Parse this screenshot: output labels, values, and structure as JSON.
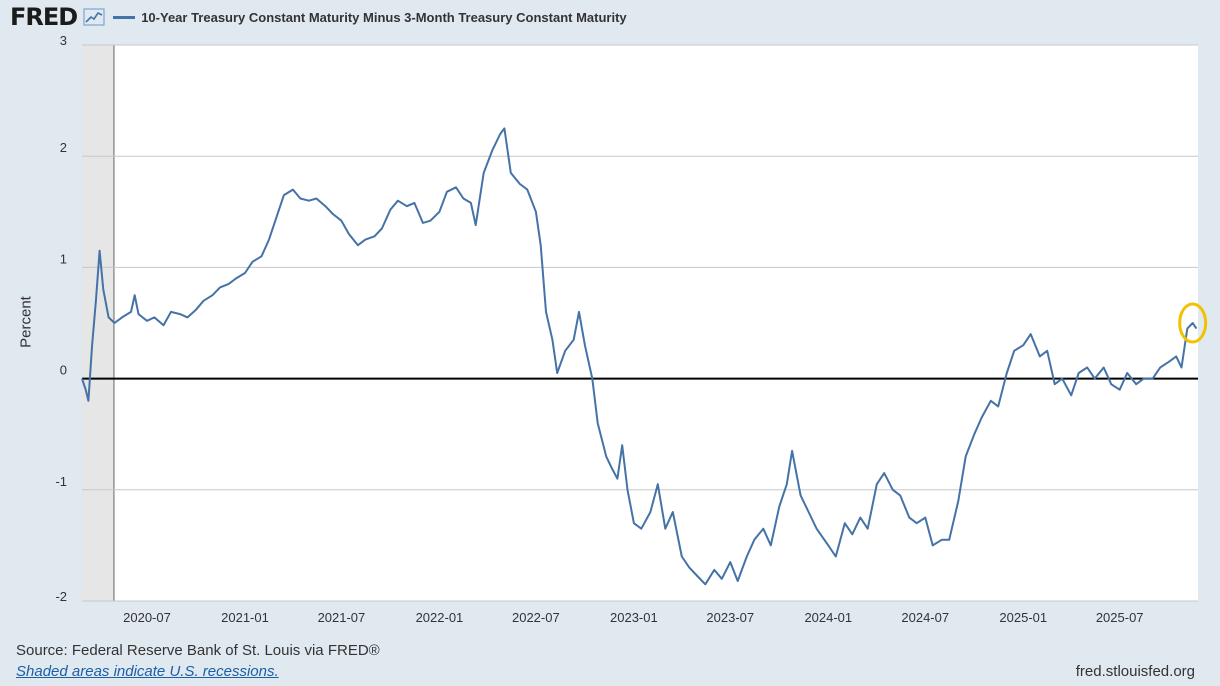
{
  "header": {
    "logo": "FRED",
    "logo_icon": "trend-line-icon"
  },
  "chart_data": {
    "type": "line",
    "series": [
      {
        "name": "10-Year Treasury Constant Maturity Minus 3-Month Treasury Constant Maturity",
        "color": "#4572a7",
        "points": [
          [
            "2020-03-01",
            0.0
          ],
          [
            "2020-03-08",
            -0.1
          ],
          [
            "2020-03-13",
            -0.2
          ],
          [
            "2020-03-20",
            0.3
          ],
          [
            "2020-03-27",
            0.7
          ],
          [
            "2020-04-03",
            1.15
          ],
          [
            "2020-04-10",
            0.8
          ],
          [
            "2020-04-20",
            0.55
          ],
          [
            "2020-05-01",
            0.5
          ],
          [
            "2020-05-15",
            0.55
          ],
          [
            "2020-06-01",
            0.6
          ],
          [
            "2020-06-08",
            0.75
          ],
          [
            "2020-06-15",
            0.58
          ],
          [
            "2020-07-01",
            0.52
          ],
          [
            "2020-07-15",
            0.55
          ],
          [
            "2020-08-01",
            0.48
          ],
          [
            "2020-08-15",
            0.6
          ],
          [
            "2020-09-01",
            0.58
          ],
          [
            "2020-09-15",
            0.55
          ],
          [
            "2020-10-01",
            0.62
          ],
          [
            "2020-10-15",
            0.7
          ],
          [
            "2020-11-01",
            0.75
          ],
          [
            "2020-11-15",
            0.82
          ],
          [
            "2020-12-01",
            0.85
          ],
          [
            "2020-12-15",
            0.9
          ],
          [
            "2021-01-01",
            0.95
          ],
          [
            "2021-01-15",
            1.05
          ],
          [
            "2021-02-01",
            1.1
          ],
          [
            "2021-02-15",
            1.25
          ],
          [
            "2021-03-01",
            1.45
          ],
          [
            "2021-03-15",
            1.65
          ],
          [
            "2021-04-01",
            1.7
          ],
          [
            "2021-04-15",
            1.62
          ],
          [
            "2021-05-01",
            1.6
          ],
          [
            "2021-05-15",
            1.62
          ],
          [
            "2021-06-01",
            1.55
          ],
          [
            "2021-06-15",
            1.48
          ],
          [
            "2021-07-01",
            1.42
          ],
          [
            "2021-07-15",
            1.3
          ],
          [
            "2021-08-01",
            1.2
          ],
          [
            "2021-08-15",
            1.25
          ],
          [
            "2021-09-01",
            1.28
          ],
          [
            "2021-09-15",
            1.35
          ],
          [
            "2021-10-01",
            1.52
          ],
          [
            "2021-10-15",
            1.6
          ],
          [
            "2021-11-01",
            1.55
          ],
          [
            "2021-11-15",
            1.58
          ],
          [
            "2021-12-01",
            1.4
          ],
          [
            "2021-12-15",
            1.42
          ],
          [
            "2022-01-01",
            1.5
          ],
          [
            "2022-01-15",
            1.68
          ],
          [
            "2022-02-01",
            1.72
          ],
          [
            "2022-02-15",
            1.62
          ],
          [
            "2022-03-01",
            1.58
          ],
          [
            "2022-03-10",
            1.38
          ],
          [
            "2022-03-25",
            1.85
          ],
          [
            "2022-04-10",
            2.05
          ],
          [
            "2022-04-25",
            2.2
          ],
          [
            "2022-05-03",
            2.25
          ],
          [
            "2022-05-15",
            1.85
          ],
          [
            "2022-06-01",
            1.75
          ],
          [
            "2022-06-15",
            1.7
          ],
          [
            "2022-07-01",
            1.5
          ],
          [
            "2022-07-10",
            1.2
          ],
          [
            "2022-07-20",
            0.6
          ],
          [
            "2022-08-01",
            0.35
          ],
          [
            "2022-08-10",
            0.05
          ],
          [
            "2022-08-25",
            0.25
          ],
          [
            "2022-09-10",
            0.35
          ],
          [
            "2022-09-20",
            0.6
          ],
          [
            "2022-10-01",
            0.3
          ],
          [
            "2022-10-15",
            0.0
          ],
          [
            "2022-10-25",
            -0.4
          ],
          [
            "2022-11-10",
            -0.7
          ],
          [
            "2022-11-20",
            -0.8
          ],
          [
            "2022-12-01",
            -0.9
          ],
          [
            "2022-12-10",
            -0.6
          ],
          [
            "2022-12-20",
            -1.0
          ],
          [
            "2023-01-01",
            -1.3
          ],
          [
            "2023-01-15",
            -1.35
          ],
          [
            "2023-02-01",
            -1.2
          ],
          [
            "2023-02-15",
            -0.95
          ],
          [
            "2023-03-01",
            -1.35
          ],
          [
            "2023-03-15",
            -1.2
          ],
          [
            "2023-04-01",
            -1.6
          ],
          [
            "2023-04-15",
            -1.7
          ],
          [
            "2023-05-01",
            -1.78
          ],
          [
            "2023-05-15",
            -1.85
          ],
          [
            "2023-06-01",
            -1.72
          ],
          [
            "2023-06-15",
            -1.8
          ],
          [
            "2023-07-01",
            -1.65
          ],
          [
            "2023-07-15",
            -1.82
          ],
          [
            "2023-08-01",
            -1.6
          ],
          [
            "2023-08-15",
            -1.45
          ],
          [
            "2023-09-01",
            -1.35
          ],
          [
            "2023-09-15",
            -1.5
          ],
          [
            "2023-10-01",
            -1.15
          ],
          [
            "2023-10-15",
            -0.95
          ],
          [
            "2023-10-25",
            -0.65
          ],
          [
            "2023-11-10",
            -1.05
          ],
          [
            "2023-11-25",
            -1.2
          ],
          [
            "2023-12-10",
            -1.35
          ],
          [
            "2024-01-01",
            -1.5
          ],
          [
            "2024-01-15",
            -1.6
          ],
          [
            "2024-02-01",
            -1.3
          ],
          [
            "2024-02-15",
            -1.4
          ],
          [
            "2024-03-01",
            -1.25
          ],
          [
            "2024-03-15",
            -1.35
          ],
          [
            "2024-04-01",
            -0.95
          ],
          [
            "2024-04-15",
            -0.85
          ],
          [
            "2024-05-01",
            -1.0
          ],
          [
            "2024-05-15",
            -1.05
          ],
          [
            "2024-06-01",
            -1.25
          ],
          [
            "2024-06-15",
            -1.3
          ],
          [
            "2024-07-01",
            -1.25
          ],
          [
            "2024-07-15",
            -1.5
          ],
          [
            "2024-08-01",
            -1.45
          ],
          [
            "2024-08-15",
            -1.45
          ],
          [
            "2024-09-01",
            -1.1
          ],
          [
            "2024-09-15",
            -0.7
          ],
          [
            "2024-10-01",
            -0.5
          ],
          [
            "2024-10-15",
            -0.35
          ],
          [
            "2024-11-01",
            -0.2
          ],
          [
            "2024-11-15",
            -0.25
          ],
          [
            "2024-12-01",
            0.05
          ],
          [
            "2024-12-15",
            0.25
          ],
          [
            "2025-01-01",
            0.3
          ],
          [
            "2025-01-15",
            0.4
          ],
          [
            "2025-02-01",
            0.2
          ],
          [
            "2025-02-15",
            0.25
          ],
          [
            "2025-03-01",
            -0.05
          ],
          [
            "2025-03-15",
            0.0
          ],
          [
            "2025-04-01",
            -0.15
          ],
          [
            "2025-04-15",
            0.05
          ],
          [
            "2025-05-01",
            0.1
          ],
          [
            "2025-05-15",
            0.0
          ],
          [
            "2025-06-01",
            0.1
          ],
          [
            "2025-06-15",
            -0.05
          ],
          [
            "2025-07-01",
            -0.1
          ],
          [
            "2025-07-15",
            0.05
          ],
          [
            "2025-08-01",
            -0.05
          ],
          [
            "2025-08-15",
            0.0
          ],
          [
            "2025-09-01",
            0.0
          ],
          [
            "2025-09-15",
            0.1
          ],
          [
            "2025-10-01",
            0.15
          ],
          [
            "2025-10-15",
            0.2
          ],
          [
            "2025-10-25",
            0.1
          ],
          [
            "2025-11-05",
            0.45
          ],
          [
            "2025-11-15",
            0.5
          ],
          [
            "2025-11-22",
            0.45
          ]
        ]
      }
    ],
    "ylabel": "Percent",
    "ylim": [
      -2,
      3
    ],
    "xlim": [
      "2020-03-01",
      "2025-11-25"
    ],
    "yticks": [
      -2,
      -1,
      0,
      1,
      2,
      3
    ],
    "xticks": [
      "2020-07",
      "2021-01",
      "2021-07",
      "2022-01",
      "2022-07",
      "2023-01",
      "2023-07",
      "2024-01",
      "2024-07",
      "2025-01",
      "2025-07"
    ],
    "grid": "horizontal",
    "zero_line": true,
    "recessions": [
      [
        "2020-03-01",
        "2020-04-30"
      ]
    ],
    "highlight": {
      "x": "2025-11-15",
      "y": 0.5,
      "color": "#f2c200"
    }
  },
  "footer": {
    "source": "Source: Federal Reserve Bank of St. Louis via FRED®",
    "note": "Shaded areas indicate U.S. recessions.",
    "site": "fred.stlouisfed.org"
  }
}
